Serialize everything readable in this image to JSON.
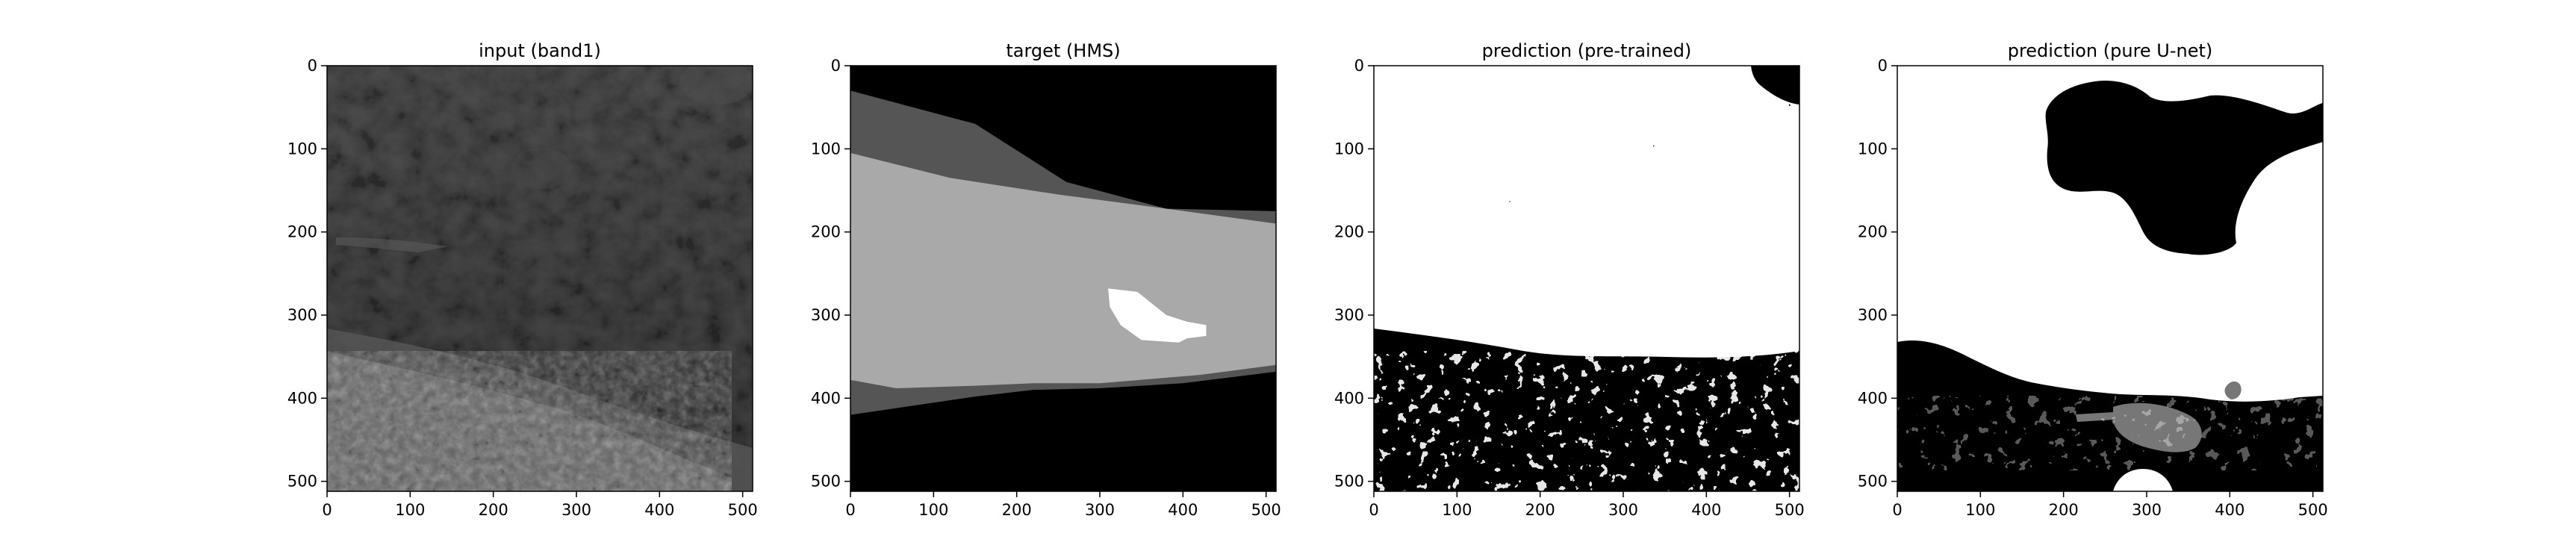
{
  "figure": {
    "background": "#ffffff"
  },
  "chart_data": [
    {
      "type": "heatmap",
      "title": "input (band1)",
      "colormap": "gray",
      "content": "grayscale satellite image: dark cloud/ocean texture with a bright cloud band in the lower-left",
      "xlim": [
        0,
        512
      ],
      "ylim": [
        512,
        0
      ],
      "xticks": [
        0,
        100,
        200,
        300,
        400,
        500
      ],
      "yticks": [
        0,
        100,
        200,
        300,
        400,
        500
      ],
      "grid": false
    },
    {
      "type": "heatmap",
      "title": "target (HMS)",
      "colormap": "gray",
      "content": "segmentation mask: black background, dark-gray diagonal bands, light-gray central band, small white polygon",
      "xlim": [
        0,
        512
      ],
      "ylim": [
        512,
        0
      ],
      "xticks": [
        0,
        100,
        200,
        300,
        400,
        500
      ],
      "yticks": [
        0,
        100,
        200,
        300,
        400,
        500
      ],
      "grid": false,
      "regions": [
        {
          "fill": "#000000",
          "points": [
            [
              0,
              0
            ],
            [
              512,
              0
            ],
            [
              512,
              512
            ],
            [
              0,
              512
            ]
          ]
        },
        {
          "fill": "#555555",
          "points": [
            [
              0,
              30
            ],
            [
              150,
              70
            ],
            [
              260,
              140
            ],
            [
              380,
              172
            ],
            [
              512,
              175
            ],
            [
              512,
              368
            ],
            [
              400,
              382
            ],
            [
              300,
              388
            ],
            [
              220,
              390
            ],
            [
              150,
              398
            ],
            [
              0,
              420
            ]
          ]
        },
        {
          "fill": "#a9a9a9",
          "points": [
            [
              0,
              105
            ],
            [
              120,
              135
            ],
            [
              250,
              155
            ],
            [
              380,
              172
            ],
            [
              512,
              190
            ],
            [
              512,
              360
            ],
            [
              420,
              372
            ],
            [
              300,
              382
            ],
            [
              220,
              382
            ],
            [
              150,
              385
            ],
            [
              55,
              388
            ],
            [
              0,
              378
            ]
          ]
        },
        {
          "fill": "#ffffff",
          "points": [
            [
              310,
              268
            ],
            [
              345,
              272
            ],
            [
              380,
              300
            ],
            [
              405,
              308
            ],
            [
              428,
              312
            ],
            [
              428,
              325
            ],
            [
              405,
              328
            ],
            [
              395,
              333
            ],
            [
              350,
              330
            ],
            [
              325,
              312
            ],
            [
              312,
              290
            ]
          ]
        }
      ]
    },
    {
      "type": "heatmap",
      "title": "prediction (pre-trained)",
      "colormap": "gray",
      "content": "binary prediction mask: mostly white with scattered black speckles in the top half, black band across the lower part",
      "xlim": [
        0,
        512
      ],
      "ylim": [
        512,
        0
      ],
      "xticks": [
        0,
        100,
        200,
        300,
        400,
        500
      ],
      "yticks": [
        0,
        100,
        200,
        300,
        400,
        500
      ],
      "grid": false
    },
    {
      "type": "heatmap",
      "title": "prediction (pure U-net)",
      "colormap": "gray",
      "content": "prediction mask: black blob at top-center, white middle region, black lower region with gray patches",
      "xlim": [
        0,
        512
      ],
      "ylim": [
        512,
        0
      ],
      "xticks": [
        0,
        100,
        200,
        300,
        400,
        500
      ],
      "yticks": [
        0,
        100,
        200,
        300,
        400,
        500
      ],
      "grid": false
    }
  ]
}
